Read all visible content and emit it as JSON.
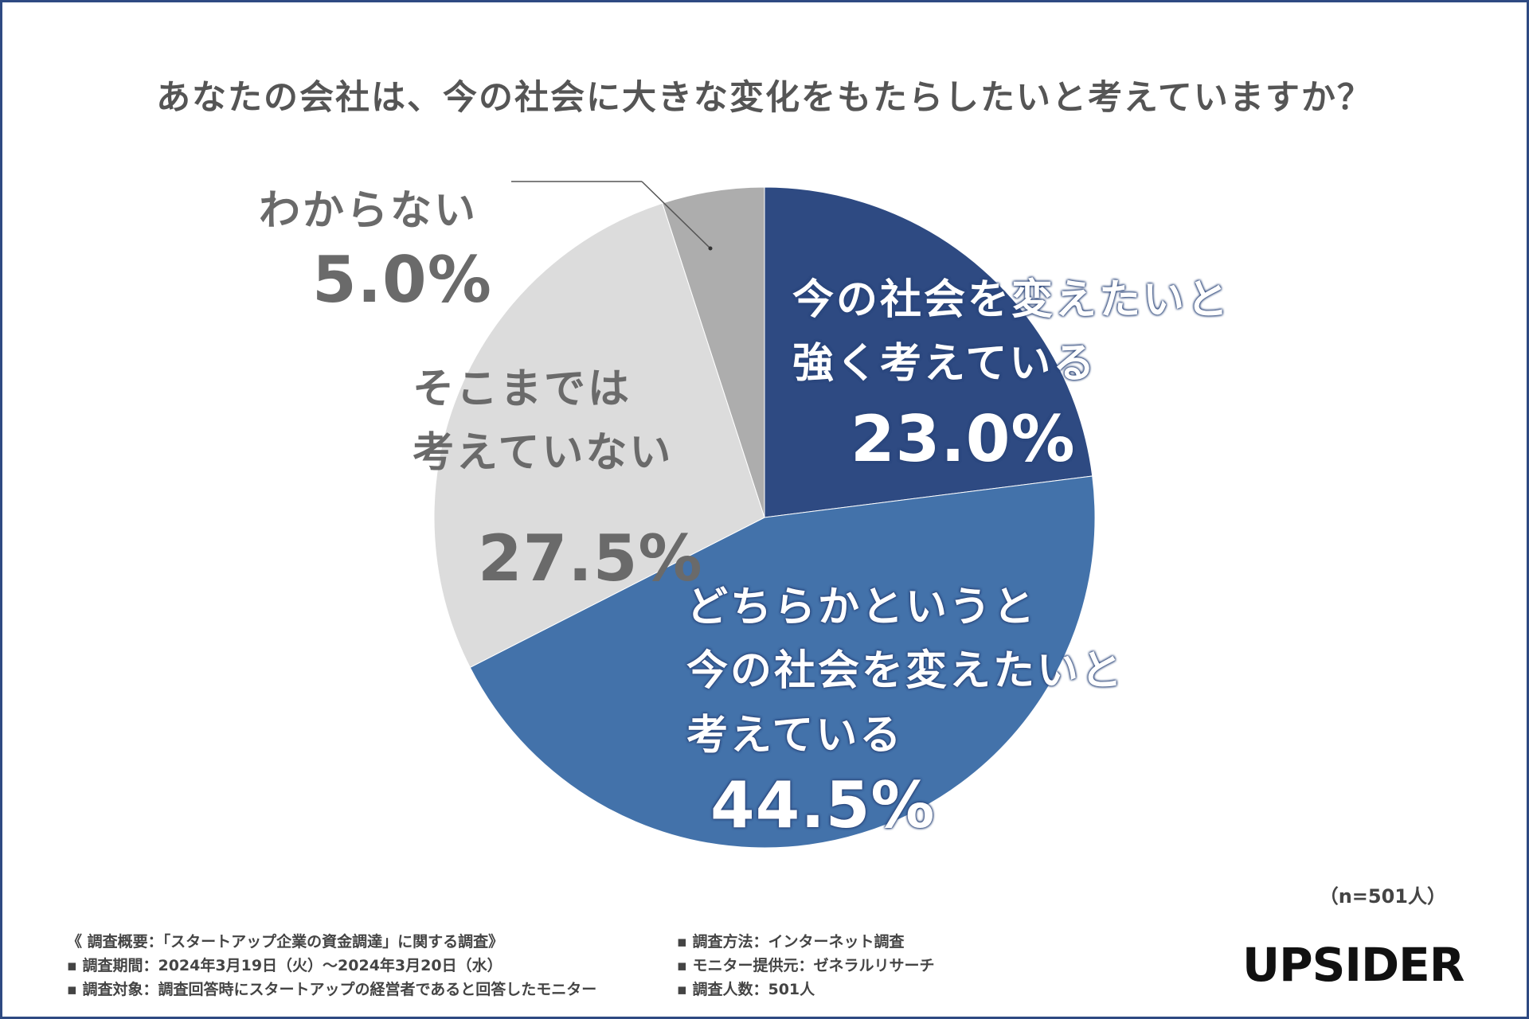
{
  "title": "あなたの会社は、今の社会に大きな変化をもたらしたいと考えていますか？",
  "chart_data": {
    "type": "pie",
    "title": "あなたの会社は、今の社会に大きな変化をもたらしたいと考えていますか？",
    "slices": [
      {
        "label": "今の社会を変えたいと\n強く考えている",
        "value": 23.0,
        "value_text": "23.0%",
        "color": "#2e4a82"
      },
      {
        "label": "どちらかというと\n今の社会を変えたいと\n考えている",
        "value": 44.5,
        "value_text": "44.5%",
        "color": "#4372aa"
      },
      {
        "label": "そこまでは\n考えていない",
        "value": 27.5,
        "value_text": "27.5%",
        "color": "#dcdcdc"
      },
      {
        "label": "わからない",
        "value": 5.0,
        "value_text": "5.0%",
        "color": "#adadad"
      }
    ],
    "start_angle": "12 o'clock, clockwise"
  },
  "sample_note": "（n=501人）",
  "survey": {
    "overview": "《 調査概要：「スタートアップ企業の資金調達」に関する調査》",
    "period": "▪ 調査期間：2024年3月19日（火）～2024年3月20日（水）",
    "target": "▪ 調査対象：調査回答時にスタートアップの経営者であると回答したモニター",
    "method": "▪ 調査方法：インターネット調査",
    "provider": "▪ モニター提供元：ゼネラルリサーチ",
    "count": "▪ 調査人数：501人"
  },
  "logo_text": "UPSIDER"
}
